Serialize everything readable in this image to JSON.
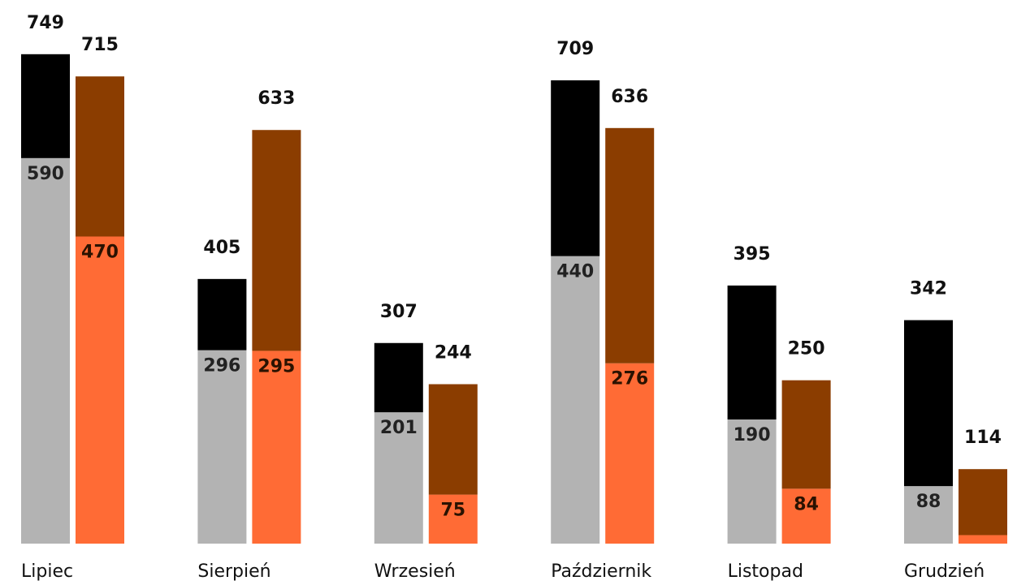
{
  "chart_data": {
    "type": "stacked_grouped_bar",
    "categories": [
      "Lipiec",
      "Sierpień",
      "Wrzesień",
      "Październik",
      "Listopad",
      "Grudzień"
    ],
    "ylim": [
      0,
      750
    ],
    "series": [
      {
        "stack": 0,
        "color": "#b3b3b3",
        "label_color": "#222222",
        "values": [
          590,
          296,
          201,
          440,
          190,
          88
        ]
      },
      {
        "stack": 0,
        "color": "#000000",
        "values": [
          159,
          109,
          106,
          269,
          205,
          254
        ]
      },
      {
        "stack": 1,
        "color": "#ff6b35",
        "label_color": "#2a1200",
        "values": [
          470,
          295,
          75,
          276,
          84,
          13
        ]
      },
      {
        "stack": 1,
        "color": "#8b3d00",
        "values": [
          245,
          338,
          169,
          360,
          166,
          101
        ]
      }
    ],
    "stack_totals": [
      {
        "stack": 0,
        "values": [
          749,
          405,
          307,
          709,
          395,
          342
        ]
      },
      {
        "stack": 1,
        "values": [
          715,
          633,
          244,
          636,
          250,
          114
        ]
      }
    ]
  }
}
